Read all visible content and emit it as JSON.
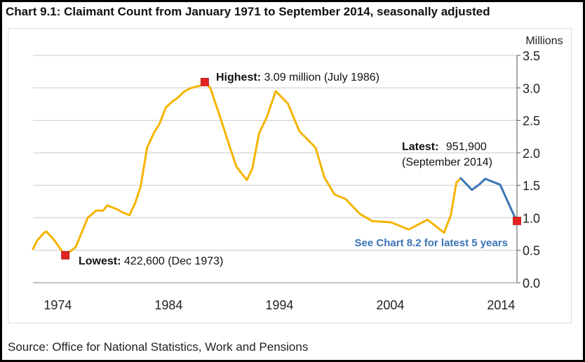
{
  "chart_data": {
    "type": "line",
    "title": "Chart 9.1: Claimant Count from January 1971 to September 2014, seasonally adjusted",
    "ylabel": "Millions",
    "xlabel": "",
    "ylim": [
      0,
      3.5
    ],
    "yticks": [
      "0.0",
      "0.5",
      "1.0",
      "1.5",
      "2.0",
      "2.5",
      "3.0",
      "3.5"
    ],
    "xticks": [
      "1974",
      "1984",
      "1994",
      "2004",
      "2014"
    ],
    "xlim": [
      1971.0,
      2014.67
    ],
    "grid": true,
    "colors": {
      "earlier": "#f5b400",
      "latest_5_years": "#3a74b5",
      "marker": "#e32222"
    },
    "series": [
      {
        "values_x_year": [
          1971.0,
          1971.38,
          1972.01,
          1972.2,
          1972.9,
          1973.6,
          1973.92,
          1974.86,
          1975.94,
          1976.7,
          1977.33,
          1977.7,
          1978.6,
          1979.0,
          1979.7,
          1980.2,
          1980.7,
          1981.3,
          1981.95,
          1982.4,
          1983.0,
          1983.5,
          1984.0,
          1984.7,
          1985.3,
          1986.2,
          1986.5,
          1987.0,
          1988.1,
          1988.7,
          1989.35,
          1990.3,
          1990.8,
          1991.4,
          1992.1,
          1992.9,
          1994.0,
          1994.6,
          1995.05,
          1995.7,
          1996.5,
          1997.3,
          1998.2,
          1999.2,
          2000.5,
          2001.6,
          2003.3,
          2004.9,
          2006.6,
          2008.1,
          2008.7,
          2009.2,
          2009.6
        ],
        "values": [
          0.52,
          0.65,
          0.77,
          0.79,
          0.66,
          0.49,
          0.42,
          0.55,
          1.0,
          1.11,
          1.11,
          1.19,
          1.13,
          1.09,
          1.04,
          1.22,
          1.47,
          2.08,
          2.32,
          2.44,
          2.7,
          2.78,
          2.84,
          2.95,
          3.0,
          3.04,
          3.09,
          3.0,
          2.44,
          2.12,
          1.79,
          1.58,
          1.76,
          2.3,
          2.55,
          2.95,
          2.76,
          2.51,
          2.33,
          2.22,
          2.08,
          1.62,
          1.36,
          1.29,
          1.06,
          0.95,
          0.93,
          0.82,
          0.97,
          0.77,
          1.04,
          1.54,
          1.61
        ]
      },
      {
        "values_x_year": [
          2009.6,
          2010.6,
          2011.25,
          2011.8,
          2013.15,
          2014.5,
          2014.67
        ],
        "values": [
          1.61,
          1.43,
          1.51,
          1.6,
          1.51,
          1.0,
          0.95
        ]
      }
    ],
    "markers": [
      {
        "x_year": 1973.92,
        "value": 0.4226
      },
      {
        "x_year": 1986.5,
        "value": 3.09
      },
      {
        "x_year": 2014.67,
        "value": 0.9519
      }
    ],
    "annotations": {
      "highest_label": "Highest:",
      "highest_text": "3.09 million (July 1986)",
      "lowest_label": "Lowest:",
      "lowest_text": "422,600 (Dec 1973)",
      "latest_label": "Latest:",
      "latest_value": "951,900",
      "latest_date": "(September 2014)",
      "see_chart": "See Chart 8.2 for latest 5 years"
    }
  },
  "source": "Source: Office for National Statistics, Work and Pensions"
}
